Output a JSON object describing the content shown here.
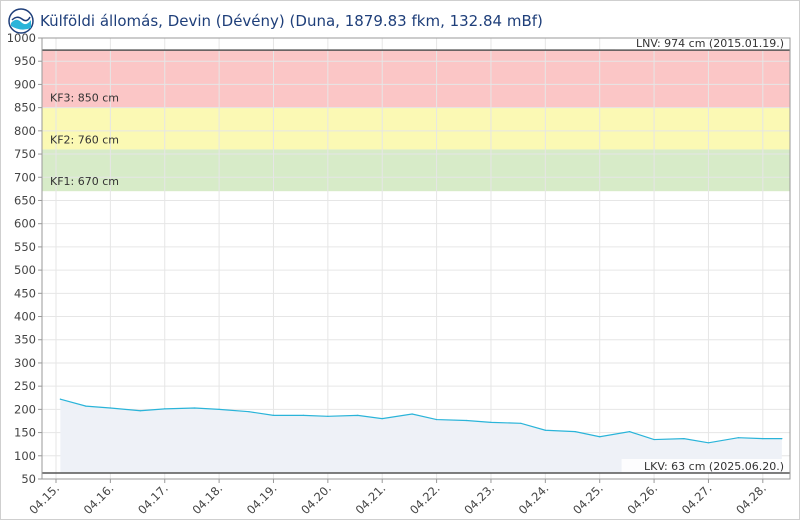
{
  "header": {
    "title": "Külföldi állomás, Devin (Dévény) (Duna, 1879.83 fkm, 132.84 mBf)",
    "logo_icon": "ovf-logo-icon"
  },
  "chart_data": {
    "type": "line",
    "title": "Külföldi állomás, Devin (Dévény) (Duna, 1879.83 fkm, 132.84 mBf)",
    "xlabel": "",
    "ylabel": "",
    "ylim": [
      50,
      1000
    ],
    "yticks": [
      50,
      100,
      150,
      200,
      250,
      300,
      350,
      400,
      450,
      500,
      550,
      600,
      650,
      700,
      750,
      800,
      850,
      900,
      950,
      1000
    ],
    "xlim": [
      0,
      13.5
    ],
    "xticks": [
      {
        "x": 0,
        "label": "04.15."
      },
      {
        "x": 1,
        "label": "04.16."
      },
      {
        "x": 2,
        "label": "04.17."
      },
      {
        "x": 3,
        "label": "04.18."
      },
      {
        "x": 4,
        "label": "04.19."
      },
      {
        "x": 5,
        "label": "04.20."
      },
      {
        "x": 6,
        "label": "04.21."
      },
      {
        "x": 7,
        "label": "04.22."
      },
      {
        "x": 8,
        "label": "04.23."
      },
      {
        "x": 9,
        "label": "04.24."
      },
      {
        "x": 10,
        "label": "04.25."
      },
      {
        "x": 11,
        "label": "04.26."
      },
      {
        "x": 12,
        "label": "04.27."
      },
      {
        "x": 13,
        "label": "04.28."
      }
    ],
    "grid": true,
    "series": [
      {
        "name": "",
        "color": "#2ab4d9",
        "fill": "#eef1f7",
        "x": [
          0.08,
          0.55,
          1.0,
          1.55,
          2.0,
          2.55,
          3.0,
          3.55,
          4.0,
          4.55,
          5.0,
          5.55,
          6.0,
          6.55,
          7.0,
          7.55,
          8.0,
          8.55,
          9.0,
          9.55,
          10.0,
          10.55,
          11.0,
          11.55,
          12.0,
          12.55,
          13.0,
          13.35
        ],
        "values": [
          222,
          207,
          203,
          197,
          201,
          203,
          200,
          195,
          187,
          187,
          185,
          187,
          180,
          190,
          178,
          176,
          172,
          170,
          155,
          152,
          141,
          152,
          135,
          137,
          128,
          139,
          137,
          137
        ]
      }
    ],
    "thresholds": [
      {
        "name": "KF1",
        "label": "KF1: 670 cm",
        "from": 670,
        "to": 760,
        "color": "#d7ebc8"
      },
      {
        "name": "KF2",
        "label": "KF2: 760 cm",
        "from": 760,
        "to": 850,
        "color": "#fbf9b4"
      },
      {
        "name": "KF3",
        "label": "KF3: 850 cm",
        "from": 850,
        "to": 974,
        "color": "#fbc6c6"
      }
    ],
    "reference_lines": [
      {
        "name": "LNV",
        "label": "LNV: 974 cm (2015.01.19.)",
        "value": 974,
        "color": "#555555"
      },
      {
        "name": "LKV",
        "label": "LKV: 63 cm (2025.06.20.)",
        "value": 63,
        "color": "#555555"
      }
    ]
  }
}
